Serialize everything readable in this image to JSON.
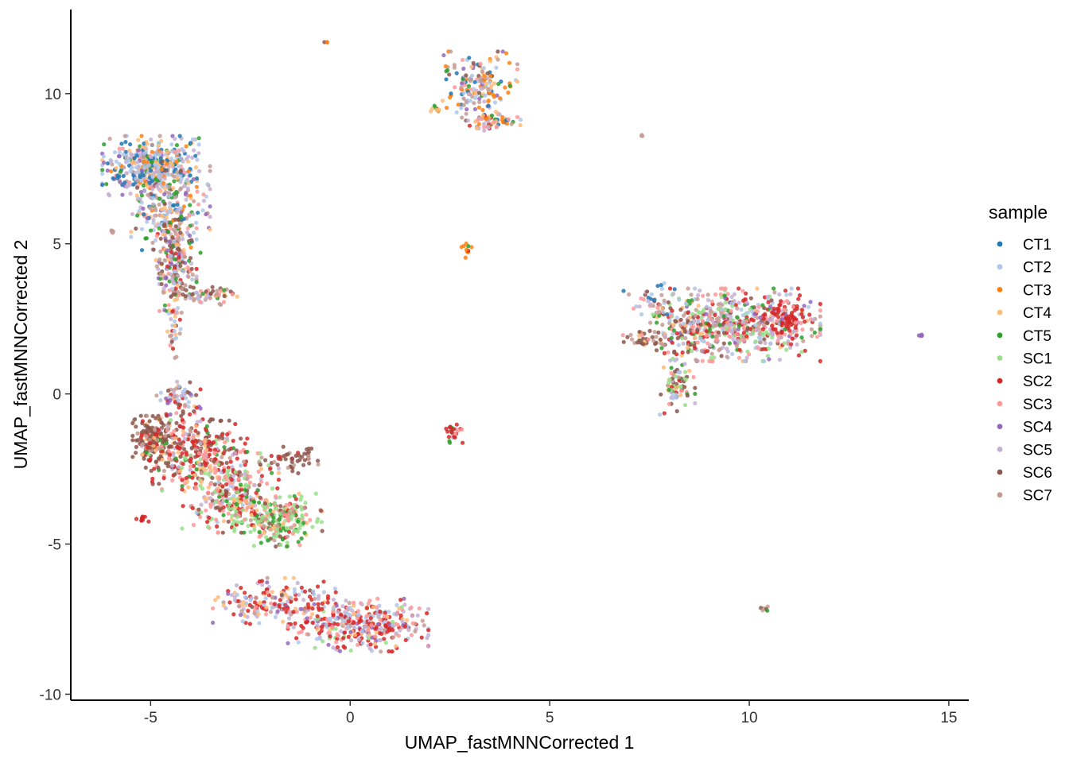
{
  "chart_data": {
    "type": "scatter",
    "title": "",
    "xlabel": "UMAP_fastMNNCorrected 1",
    "ylabel": "UMAP_fastMNNCorrected 2",
    "xlim": [
      -7,
      15.5
    ],
    "ylim": [
      -10.2,
      12.8
    ],
    "x_ticks": [
      -5,
      0,
      5,
      10,
      15
    ],
    "y_ticks": [
      -10,
      -5,
      0,
      5,
      10
    ],
    "x_tick_labels": [
      "-5",
      "0",
      "5",
      "10",
      "15"
    ],
    "y_tick_labels": [
      "-10",
      "-5",
      "0",
      "5",
      "10"
    ],
    "grid": false,
    "legend": {
      "title": "sample",
      "placement": "right",
      "entries": [
        {
          "name": "CT1",
          "color": "#1F77B4"
        },
        {
          "name": "CT2",
          "color": "#AEC7E8"
        },
        {
          "name": "CT3",
          "color": "#FF7F0E"
        },
        {
          "name": "CT4",
          "color": "#FFBB78"
        },
        {
          "name": "CT5",
          "color": "#2CA02C"
        },
        {
          "name": "SC1",
          "color": "#98DF8A"
        },
        {
          "name": "SC2",
          "color": "#D62728"
        },
        {
          "name": "SC3",
          "color": "#FF9896"
        },
        {
          "name": "SC4",
          "color": "#9467BD"
        },
        {
          "name": "SC5",
          "color": "#C5B0D5"
        },
        {
          "name": "SC6",
          "color": "#8C564B"
        },
        {
          "name": "SC7",
          "color": "#C49C94"
        }
      ]
    },
    "clusters": [
      {
        "center": [
          -5.0,
          7.6
        ],
        "spread": [
          0.55,
          0.45
        ],
        "n": 420,
        "mix": [
          3,
          3,
          1,
          2,
          2,
          0,
          0,
          1,
          1,
          3,
          0,
          1
        ]
      },
      {
        "center": [
          -4.5,
          6.2
        ],
        "spread": [
          0.45,
          0.7
        ],
        "n": 260,
        "mix": [
          1,
          2,
          1,
          2,
          1,
          0,
          0,
          1,
          1,
          2,
          1,
          2
        ]
      },
      {
        "center": [
          -4.4,
          4.3
        ],
        "spread": [
          0.25,
          0.7
        ],
        "n": 200,
        "mix": [
          0,
          1,
          0,
          1,
          1,
          0,
          1,
          1,
          1,
          1,
          3,
          2
        ]
      },
      {
        "center": [
          -3.6,
          3.3
        ],
        "spread": [
          0.35,
          0.15
        ],
        "n": 60,
        "mix": [
          0,
          1,
          0,
          1,
          1,
          0,
          0,
          1,
          0,
          1,
          2,
          2
        ]
      },
      {
        "center": [
          -4.4,
          2.3
        ],
        "spread": [
          0.08,
          0.5
        ],
        "n": 40,
        "mix": [
          0,
          1,
          0,
          1,
          0,
          0,
          1,
          1,
          0,
          1,
          2,
          2
        ]
      },
      {
        "center": [
          -4.3,
          -0.2
        ],
        "spread": [
          0.25,
          0.35
        ],
        "n": 70,
        "mix": [
          0,
          2,
          0,
          1,
          0,
          0,
          1,
          1,
          1,
          2,
          2,
          1
        ]
      },
      {
        "center": [
          -4.9,
          -1.5
        ],
        "spread": [
          0.25,
          0.35
        ],
        "n": 180,
        "mix": [
          0,
          0,
          0,
          1,
          0,
          0,
          1,
          0,
          0,
          0,
          6,
          2
        ]
      },
      {
        "center": [
          -3.9,
          -1.9
        ],
        "spread": [
          0.6,
          0.6
        ],
        "n": 320,
        "mix": [
          0,
          0,
          0,
          1,
          1,
          1,
          4,
          2,
          0,
          1,
          3,
          1
        ]
      },
      {
        "center": [
          -3.0,
          -3.3
        ],
        "spread": [
          0.55,
          0.6
        ],
        "n": 300,
        "mix": [
          0,
          1,
          0,
          2,
          1,
          3,
          3,
          3,
          0,
          1,
          2,
          1
        ]
      },
      {
        "center": [
          -1.8,
          -4.2
        ],
        "spread": [
          0.5,
          0.4
        ],
        "n": 240,
        "mix": [
          0,
          0,
          0,
          1,
          2,
          6,
          1,
          2,
          0,
          0,
          1,
          1
        ]
      },
      {
        "center": [
          -1.5,
          -2.2
        ],
        "spread": [
          0.35,
          0.2
        ],
        "n": 50,
        "mix": [
          0,
          0,
          0,
          0,
          0,
          0,
          1,
          0,
          0,
          0,
          5,
          2
        ]
      },
      {
        "center": [
          -1.9,
          -6.9
        ],
        "spread": [
          0.7,
          0.35
        ],
        "n": 180,
        "mix": [
          0,
          2,
          0,
          2,
          0,
          0,
          4,
          1,
          1,
          2,
          1,
          1
        ]
      },
      {
        "center": [
          0.2,
          -7.7
        ],
        "spread": [
          0.8,
          0.4
        ],
        "n": 380,
        "mix": [
          0,
          2,
          0,
          1,
          0,
          1,
          5,
          2,
          1,
          3,
          0,
          1
        ]
      },
      {
        "center": [
          -5.2,
          -4.15
        ],
        "spread": [
          0.08,
          0.05
        ],
        "n": 10,
        "mix": [
          0,
          0,
          0,
          0,
          0,
          0,
          5,
          0,
          0,
          0,
          0,
          0
        ]
      },
      {
        "center": [
          -5.95,
          5.4
        ],
        "spread": [
          0.05,
          0.04
        ],
        "n": 6,
        "mix": [
          0,
          0,
          0,
          0,
          0,
          0,
          0,
          0,
          0,
          0,
          0,
          1
        ]
      },
      {
        "center": [
          -0.6,
          11.7
        ],
        "spread": [
          0.02,
          0.02
        ],
        "n": 3,
        "mix": [
          0,
          0,
          1,
          0,
          0,
          0,
          0,
          0,
          0,
          0,
          1,
          0
        ]
      },
      {
        "center": [
          3.2,
          10.3
        ],
        "spread": [
          0.45,
          0.5
        ],
        "n": 170,
        "mix": [
          2,
          2,
          3,
          2,
          1,
          0,
          0,
          1,
          1,
          1,
          1,
          2
        ]
      },
      {
        "center": [
          3.5,
          9.1
        ],
        "spread": [
          0.35,
          0.15
        ],
        "n": 60,
        "mix": [
          1,
          1,
          2,
          2,
          1,
          0,
          1,
          1,
          0,
          1,
          1,
          1
        ]
      },
      {
        "center": [
          2.1,
          9.5
        ],
        "spread": [
          0.06,
          0.05
        ],
        "n": 8,
        "mix": [
          0,
          0,
          0,
          1,
          2,
          0,
          0,
          0,
          0,
          0,
          0,
          0
        ]
      },
      {
        "center": [
          2.9,
          4.8
        ],
        "spread": [
          0.08,
          0.12
        ],
        "n": 10,
        "mix": [
          0,
          0,
          3,
          0,
          1,
          0,
          1,
          0,
          0,
          0,
          0,
          0
        ]
      },
      {
        "center": [
          2.6,
          -1.3
        ],
        "spread": [
          0.12,
          0.15
        ],
        "n": 25,
        "mix": [
          0,
          0,
          0,
          0,
          1,
          0,
          5,
          1,
          0,
          1,
          0,
          0
        ]
      },
      {
        "center": [
          7.3,
          8.6
        ],
        "spread": [
          0.02,
          0.02
        ],
        "n": 3,
        "mix": [
          0,
          0,
          0,
          0,
          0,
          0,
          0,
          0,
          0,
          0,
          0,
          1
        ]
      },
      {
        "center": [
          9.8,
          2.3
        ],
        "spread": [
          0.9,
          0.55
        ],
        "n": 520,
        "mix": [
          0,
          2,
          0,
          1,
          1,
          2,
          3,
          3,
          1,
          3,
          1,
          2
        ]
      },
      {
        "center": [
          8.4,
          2.2
        ],
        "spread": [
          0.5,
          0.5
        ],
        "n": 150,
        "mix": [
          0,
          1,
          0,
          1,
          1,
          1,
          1,
          1,
          0,
          1,
          3,
          2
        ]
      },
      {
        "center": [
          8.2,
          0.3
        ],
        "spread": [
          0.2,
          0.45
        ],
        "n": 80,
        "mix": [
          0,
          1,
          0,
          1,
          1,
          1,
          1,
          1,
          0,
          1,
          2,
          1
        ]
      },
      {
        "center": [
          10.9,
          2.5
        ],
        "spread": [
          0.25,
          0.3
        ],
        "n": 80,
        "mix": [
          0,
          0,
          0,
          0,
          0,
          0,
          6,
          1,
          1,
          1,
          0,
          0
        ]
      },
      {
        "center": [
          7.5,
          3.2
        ],
        "spread": [
          0.3,
          0.25
        ],
        "n": 30,
        "mix": [
          1,
          1,
          0,
          0,
          0,
          0,
          0,
          1,
          0,
          1,
          1,
          1
        ]
      },
      {
        "center": [
          7.3,
          1.8
        ],
        "spread": [
          0.25,
          0.12
        ],
        "n": 30,
        "mix": [
          0,
          0,
          0,
          1,
          0,
          0,
          1,
          1,
          0,
          0,
          4,
          2
        ]
      },
      {
        "center": [
          14.3,
          1.95
        ],
        "spread": [
          0.04,
          0.02
        ],
        "n": 6,
        "mix": [
          0,
          0,
          0,
          0,
          0,
          0,
          0,
          0,
          4,
          1,
          0,
          0
        ]
      },
      {
        "center": [
          10.4,
          -7.15
        ],
        "spread": [
          0.05,
          0.04
        ],
        "n": 6,
        "mix": [
          0,
          0,
          0,
          0,
          2,
          0,
          0,
          0,
          0,
          0,
          1,
          1
        ]
      }
    ]
  }
}
